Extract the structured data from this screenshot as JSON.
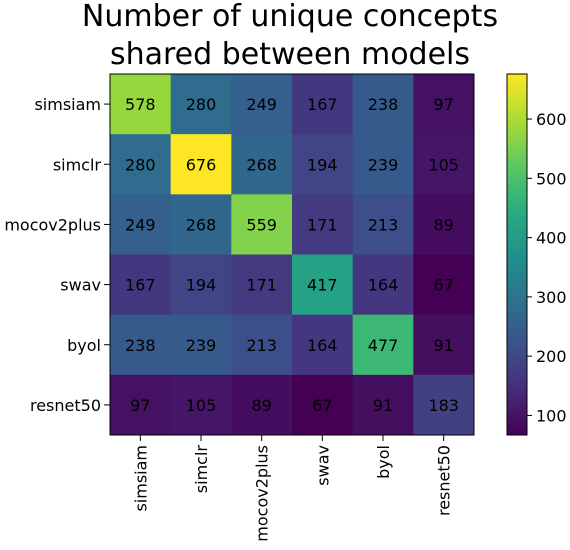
{
  "chart_data": {
    "type": "heatmap",
    "title_lines": [
      "Number of unique concepts",
      "shared between models"
    ],
    "rows": [
      "simsiam",
      "simclr",
      "mocov2plus",
      "swav",
      "byol",
      "resnet50"
    ],
    "columns": [
      "simsiam",
      "simclr",
      "mocov2plus",
      "swav",
      "byol",
      "resnet50"
    ],
    "values": [
      [
        578,
        280,
        249,
        167,
        238,
        97
      ],
      [
        280,
        676,
        268,
        194,
        239,
        105
      ],
      [
        249,
        268,
        559,
        171,
        213,
        89
      ],
      [
        167,
        194,
        171,
        417,
        164,
        67
      ],
      [
        238,
        239,
        213,
        164,
        477,
        91
      ],
      [
        97,
        105,
        89,
        67,
        91,
        183
      ]
    ],
    "colormap": "viridis",
    "color_range": [
      67,
      676
    ],
    "colorbar_ticks": [
      100,
      200,
      300,
      400,
      500,
      600
    ]
  }
}
